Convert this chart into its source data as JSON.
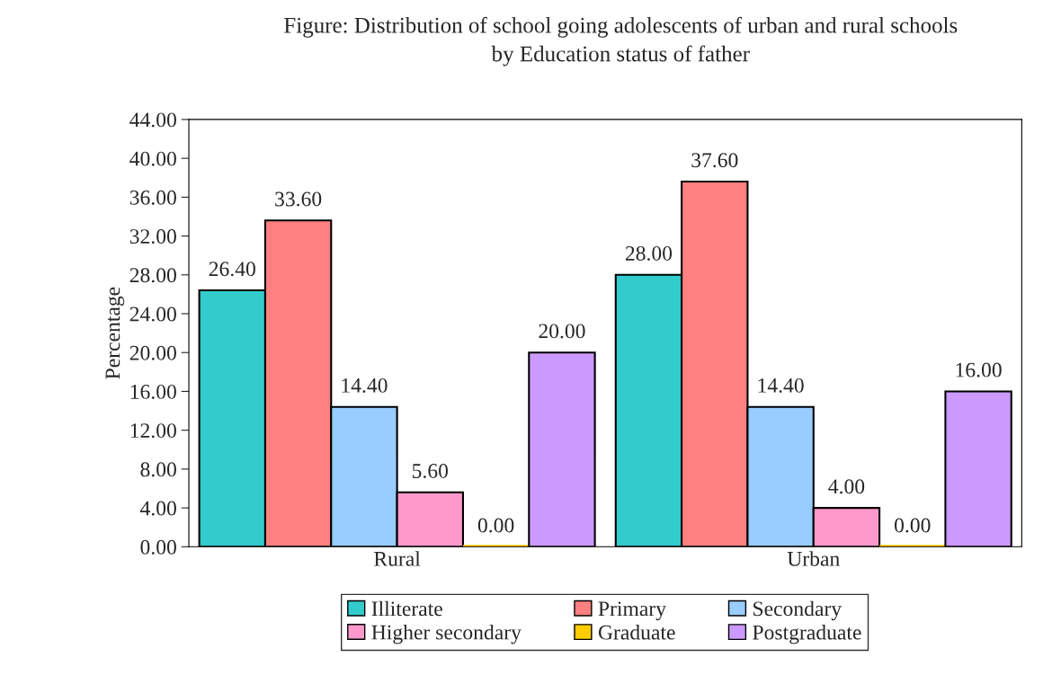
{
  "chart_data": {
    "type": "bar",
    "title": "Figure: Distribution of school going adolescents of urban and rural schools\nby Education status of father",
    "ylabel": "Percentage",
    "categories": [
      "Rural",
      "Urban"
    ],
    "series": [
      {
        "name": "Illiterate",
        "color": "#33cccc",
        "values": [
          26.4,
          28.0
        ],
        "value_labels": [
          "26.40",
          "28.00"
        ]
      },
      {
        "name": "Primary",
        "color": "#ff8080",
        "values": [
          33.6,
          37.6
        ],
        "value_labels": [
          "33.60",
          "37.60"
        ]
      },
      {
        "name": "Secondary",
        "color": "#99ccff",
        "values": [
          14.4,
          14.4
        ],
        "value_labels": [
          "14.40",
          "14.40"
        ]
      },
      {
        "name": "Higher secondary",
        "color": "#ff99cc",
        "values": [
          5.6,
          4.0
        ],
        "value_labels": [
          "5.60",
          "4.00"
        ]
      },
      {
        "name": "Graduate",
        "color": "#ffcc00",
        "values": [
          0.0,
          0.0
        ],
        "value_labels": [
          "0.00",
          "0.00"
        ]
      },
      {
        "name": "Postgraduate",
        "color": "#cc99ff",
        "values": [
          20.0,
          16.0
        ],
        "value_labels": [
          "20.00",
          "16.00"
        ]
      }
    ],
    "ylim": [
      0,
      44
    ],
    "yticks": [
      {
        "value": 0,
        "label": "0.00"
      },
      {
        "value": 4,
        "label": "4.00"
      },
      {
        "value": 8,
        "label": "8.00"
      },
      {
        "value": 12,
        "label": "12.00"
      },
      {
        "value": 16,
        "label": "16.00"
      },
      {
        "value": 20,
        "label": "20.00"
      },
      {
        "value": 24,
        "label": "24.00"
      },
      {
        "value": 28,
        "label": "28.00"
      },
      {
        "value": 32,
        "label": "32.00"
      },
      {
        "value": 36,
        "label": "36.00"
      },
      {
        "value": 40,
        "label": "40.00"
      },
      {
        "value": 44,
        "label": "44.00"
      }
    ],
    "grid": false,
    "legend": "bottom"
  }
}
